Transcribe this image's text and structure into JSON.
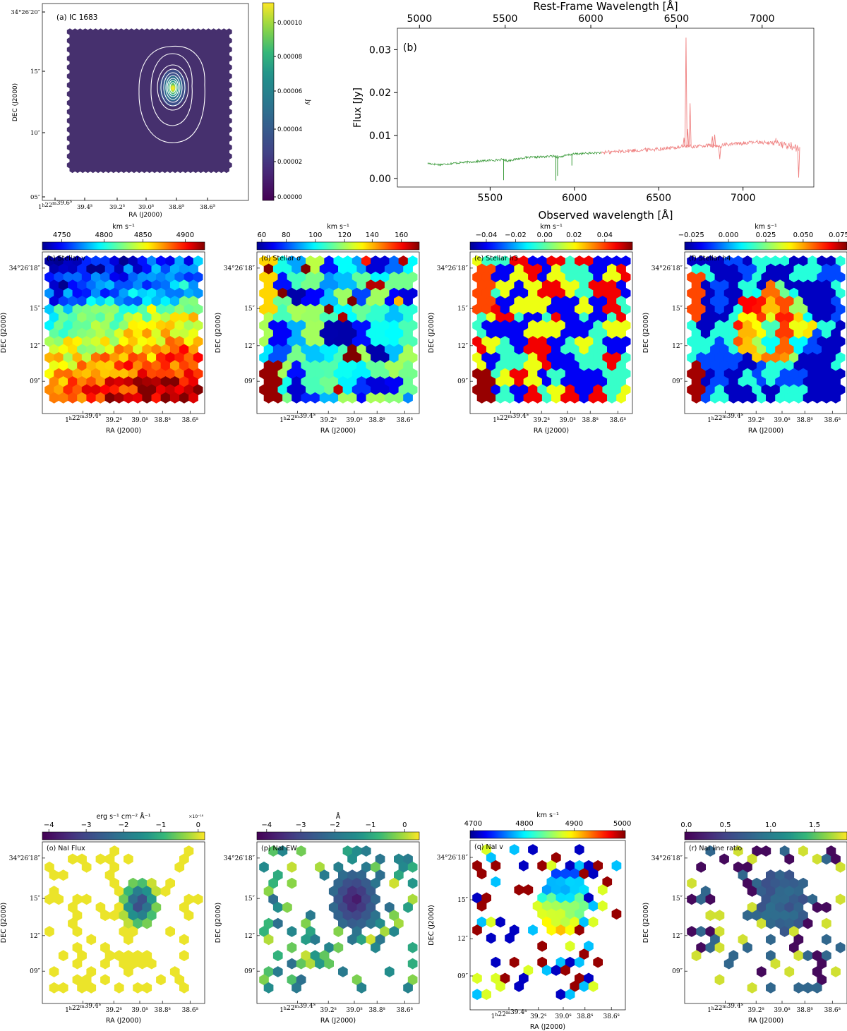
{
  "chart_data": [
    {
      "id": "a",
      "type": "heatmap",
      "panel_label": "(a) IC 1683",
      "xlabel": "RA (J2000)",
      "ylabel": "DEC (J2000)",
      "x_ticks": [
        "1h22m39.6s",
        "39.4s",
        "39.2s",
        "39.0s",
        "38.8s",
        "38.6s"
      ],
      "y_ticks": [
        "34°26′20″",
        "15″",
        "10″",
        "05″"
      ],
      "colorbar_label": "Jy",
      "colorbar_ticks": [
        "0.00000",
        "0.00002",
        "0.00004",
        "0.00006",
        "0.00008",
        "0.00010"
      ],
      "colormap": "viridis",
      "contour_color": "#ffffff"
    },
    {
      "id": "b",
      "type": "line",
      "panel_label": "(b)",
      "xlabel": "Observed wavelength [Å]",
      "x2label": "Rest-Frame Wavelength [Å]",
      "ylabel": "Flux [Jy]",
      "xlim": [
        4950,
        7420
      ],
      "ylim": [
        -0.002,
        0.035
      ],
      "x_ticks": [
        5500,
        6000,
        6500,
        7000
      ],
      "x2_ticks": [
        5000,
        5500,
        6000,
        6500,
        7000
      ],
      "y_ticks": [
        "0.00",
        "0.01",
        "0.02",
        "0.03"
      ],
      "y_tick_values": [
        0,
        0.01,
        0.02,
        0.03
      ],
      "series": [
        {
          "color": "#3a9a3a",
          "x": [
            5130,
            5200,
            5300,
            5400,
            5500,
            5580,
            5600,
            5700,
            5800,
            5880,
            5900,
            5980,
            6000,
            6100,
            6160
          ],
          "y": [
            0.0035,
            0.0032,
            0.0036,
            0.0039,
            0.0042,
            0.0044,
            0.0041,
            0.0048,
            0.005,
            0.0052,
            0.0049,
            0.0056,
            0.0057,
            0.0059,
            0.006
          ],
          "dips": [
            {
              "x": 5580,
              "y": -0.0004
            },
            {
              "x": 5890,
              "y": -0.0005
            },
            {
              "x": 5900,
              "y": 0.0006
            },
            {
              "x": 5985,
              "y": 0.003
            }
          ]
        },
        {
          "color": "#ef8080",
          "x": [
            6160,
            6300,
            6400,
            6500,
            6600,
            6650,
            6700,
            6800,
            6850,
            6900,
            7000,
            7100,
            7200,
            7300,
            7330
          ],
          "y": [
            0.006,
            0.0064,
            0.0066,
            0.0069,
            0.0072,
            0.0075,
            0.0074,
            0.0077,
            0.0074,
            0.0079,
            0.0082,
            0.0085,
            0.0081,
            0.0074,
            0.0068
          ],
          "peaks": [
            {
              "x": 6650,
              "y": 0.0095
            },
            {
              "x": 6662,
              "y": 0.0328
            },
            {
              "x": 6672,
              "y": 0.0115
            },
            {
              "x": 6686,
              "y": 0.0175
            },
            {
              "x": 6818,
              "y": 0.0098
            },
            {
              "x": 6832,
              "y": 0.0102
            },
            {
              "x": 6862,
              "y": 0.0045
            },
            {
              "x": 7330,
              "y": 0.0002
            }
          ]
        }
      ]
    },
    {
      "id": "c",
      "type": "heatmap",
      "panel_label": "(c) Stellar v",
      "xlabel": "RA (J2000)",
      "ylabel": "DEC (J2000)",
      "colorbar_title": "km s⁻¹",
      "colorbar_ticks": [
        "4750",
        "4800",
        "4850",
        "4900"
      ],
      "colormap": "jet"
    },
    {
      "id": "d",
      "type": "heatmap",
      "panel_label": "(d) Stellar σ",
      "xlabel": "RA (J2000)",
      "ylabel": "DEC (J2000)",
      "colorbar_title": "km s⁻¹",
      "colorbar_ticks": [
        "60",
        "80",
        "100",
        "120",
        "140",
        "160"
      ],
      "colormap": "jet"
    },
    {
      "id": "e",
      "type": "heatmap",
      "panel_label": "(e) Stellar h3",
      "xlabel": "RA (J2000)",
      "ylabel": "DEC (J2000)",
      "colorbar_title": "km s⁻¹",
      "colorbar_ticks": [
        "−0.04",
        "−0.02",
        "0.00",
        "0.02",
        "0.04"
      ],
      "colormap": "jet"
    },
    {
      "id": "f",
      "type": "heatmap",
      "panel_label": "(f) Stellar h4",
      "xlabel": "RA (J2000)",
      "ylabel": "DEC (J2000)",
      "colorbar_title": "km s⁻¹",
      "colorbar_ticks": [
        "−0.025",
        "0.000",
        "0.025",
        "0.050",
        "0.075"
      ],
      "colormap": "jet"
    },
    {
      "id": "o",
      "type": "heatmap",
      "panel_label": "(o) NaI Flux",
      "xlabel": "RA (J2000)",
      "ylabel": "DEC (J2000)",
      "colorbar_title": "erg s⁻¹ cm⁻² Å⁻¹",
      "colorbar_multiplier": "×10⁻¹⁸",
      "colorbar_ticks": [
        "−4",
        "−3",
        "−2",
        "−1",
        "0"
      ],
      "colormap": "viridis"
    },
    {
      "id": "p",
      "type": "heatmap",
      "panel_label": "(p) NaI EW",
      "xlabel": "RA (J2000)",
      "ylabel": "DEC (J2000)",
      "colorbar_title": "Å",
      "colorbar_ticks": [
        "−4",
        "−3",
        "−2",
        "−1",
        "0"
      ],
      "colormap": "viridis"
    },
    {
      "id": "q",
      "type": "heatmap",
      "panel_label": "(q) NaI v",
      "xlabel": "RA (J2000)",
      "ylabel": "DEC (J2000)",
      "colorbar_title": "km s⁻¹",
      "colorbar_ticks": [
        "4700",
        "4800",
        "4900",
        "5000"
      ],
      "colormap": "jet"
    },
    {
      "id": "r",
      "type": "heatmap",
      "panel_label": "(r) NaI line ratio",
      "xlabel": "RA (J2000)",
      "ylabel": "DEC (J2000)",
      "colorbar_ticks": [
        "0.0",
        "0.5",
        "1.0",
        "1.5"
      ],
      "colormap": "viridis"
    }
  ],
  "map_axes": {
    "x_ticks": [
      "1h22m39.4s",
      "39.2s",
      "39.0s",
      "38.8s",
      "38.6s"
    ],
    "y_ticks": [
      "34°26′18″",
      "15″",
      "12″",
      "09″"
    ]
  }
}
